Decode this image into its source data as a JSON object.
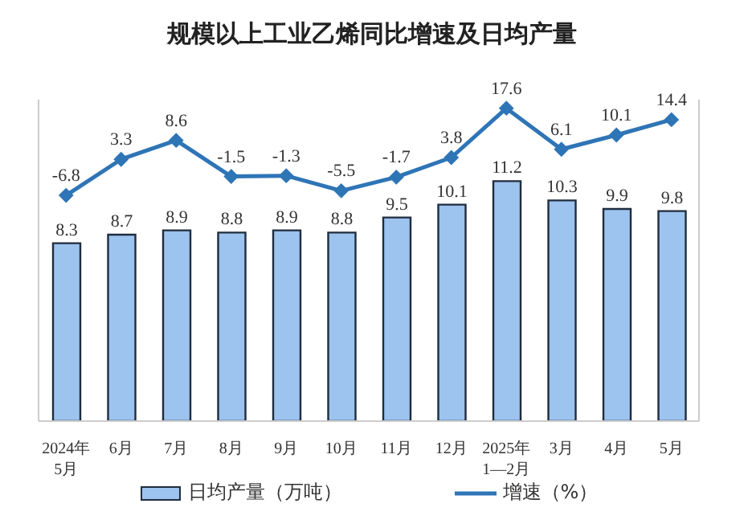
{
  "chart_data": {
    "type": "bar",
    "title": "规模以上工业乙烯同比增速及日均产量",
    "categories": [
      "2024年\n5月",
      "6月",
      "7月",
      "8月",
      "9月",
      "10月",
      "11月",
      "12月",
      "2025年\n1—2月",
      "3月",
      "4月",
      "5月"
    ],
    "series": [
      {
        "name": "日均产量（万吨）",
        "color": "#9dc3ef",
        "values": [
          8.3,
          8.7,
          8.9,
          8.8,
          8.9,
          8.8,
          9.5,
          10.1,
          11.2,
          10.3,
          9.9,
          9.8
        ]
      },
      {
        "name": "增速（%）",
        "type": "line",
        "axis": "y2",
        "color": "#2e75b6",
        "values": [
          -6.8,
          3.3,
          8.6,
          -1.5,
          -1.3,
          -5.5,
          -1.7,
          3.8,
          17.6,
          6.1,
          10.1,
          14.4
        ]
      }
    ],
    "ylim": [
      0,
      15
    ],
    "y2lim": [
      -70,
      20
    ],
    "tick_labels": "x",
    "data_labels": true,
    "legend": "bottom",
    "marker": "diamond"
  }
}
